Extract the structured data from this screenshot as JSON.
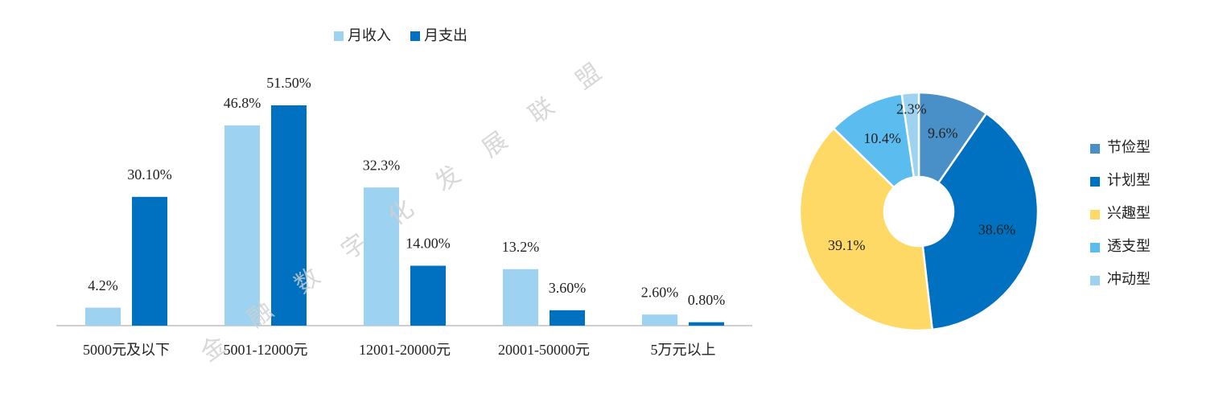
{
  "watermark": "金融数字化发展联盟",
  "chart_data": [
    {
      "type": "bar",
      "categories": [
        "5000元及以下",
        "5001-12000元",
        "12001-20000元",
        "20001-50000元",
        "5万元以上"
      ],
      "series": [
        {
          "name": "月收入",
          "color": "#9dd3f0",
          "values": [
            4.2,
            46.8,
            32.3,
            13.2,
            2.6
          ],
          "value_labels": [
            "4.2%",
            "46.8%",
            "32.3%",
            "13.2%",
            "2.60%"
          ]
        },
        {
          "name": "月支出",
          "color": "#0070c0",
          "values": [
            30.1,
            51.5,
            14.0,
            3.6,
            0.8
          ],
          "value_labels": [
            "30.10%",
            "51.50%",
            "14.00%",
            "3.60%",
            "0.80%"
          ]
        }
      ],
      "legend": "top"
    },
    {
      "type": "pie",
      "categories": [
        "节俭型",
        "计划型",
        "兴趣型",
        "透支型",
        "冲动型"
      ],
      "values": [
        9.6,
        38.6,
        39.1,
        10.4,
        2.3
      ],
      "value_labels": [
        "9.6%",
        "38.6%",
        "39.1%",
        "10.4%",
        "2.3%"
      ],
      "colors": [
        "#4a90c8",
        "#0070c0",
        "#ffd966",
        "#5bbcf0",
        "#9dd3f0"
      ],
      "legend": "right"
    }
  ]
}
